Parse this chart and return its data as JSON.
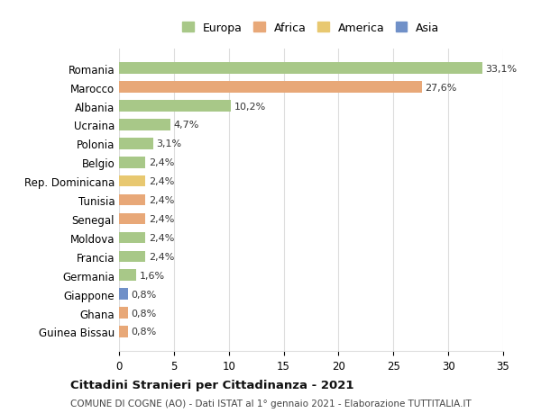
{
  "title": "Cittadini Stranieri per Cittadinanza - 2021",
  "subtitle": "COMUNE DI COGNE (AO) - Dati ISTAT al 1° gennaio 2021 - Elaborazione TUTTITALIA.IT",
  "legend_labels": [
    "Europa",
    "Africa",
    "America",
    "Asia"
  ],
  "legend_colors": [
    "#a8c888",
    "#e8a878",
    "#e8c870",
    "#7090c8"
  ],
  "categories": [
    "Romania",
    "Marocco",
    "Albania",
    "Ucraina",
    "Polonia",
    "Belgio",
    "Rep. Dominicana",
    "Tunisia",
    "Senegal",
    "Moldova",
    "Francia",
    "Germania",
    "Giappone",
    "Ghana",
    "Guinea Bissau"
  ],
  "values": [
    33.1,
    27.6,
    10.2,
    4.7,
    3.1,
    2.4,
    2.4,
    2.4,
    2.4,
    2.4,
    2.4,
    1.6,
    0.8,
    0.8,
    0.8
  ],
  "labels": [
    "33,1%",
    "27,6%",
    "10,2%",
    "4,7%",
    "3,1%",
    "2,4%",
    "2,4%",
    "2,4%",
    "2,4%",
    "2,4%",
    "2,4%",
    "1,6%",
    "0,8%",
    "0,8%",
    "0,8%"
  ],
  "bar_colors": [
    "#a8c888",
    "#e8a878",
    "#a8c888",
    "#a8c888",
    "#a8c888",
    "#a8c888",
    "#e8c870",
    "#e8a878",
    "#e8a878",
    "#a8c888",
    "#a8c888",
    "#a8c888",
    "#7090c8",
    "#e8a878",
    "#e8a878"
  ],
  "xlim": [
    0,
    35
  ],
  "xticks": [
    0,
    5,
    10,
    15,
    20,
    25,
    30,
    35
  ],
  "background_color": "#ffffff",
  "grid_color": "#dddddd",
  "bar_height": 0.6,
  "figsize": [
    6.0,
    4.6
  ],
  "dpi": 100
}
